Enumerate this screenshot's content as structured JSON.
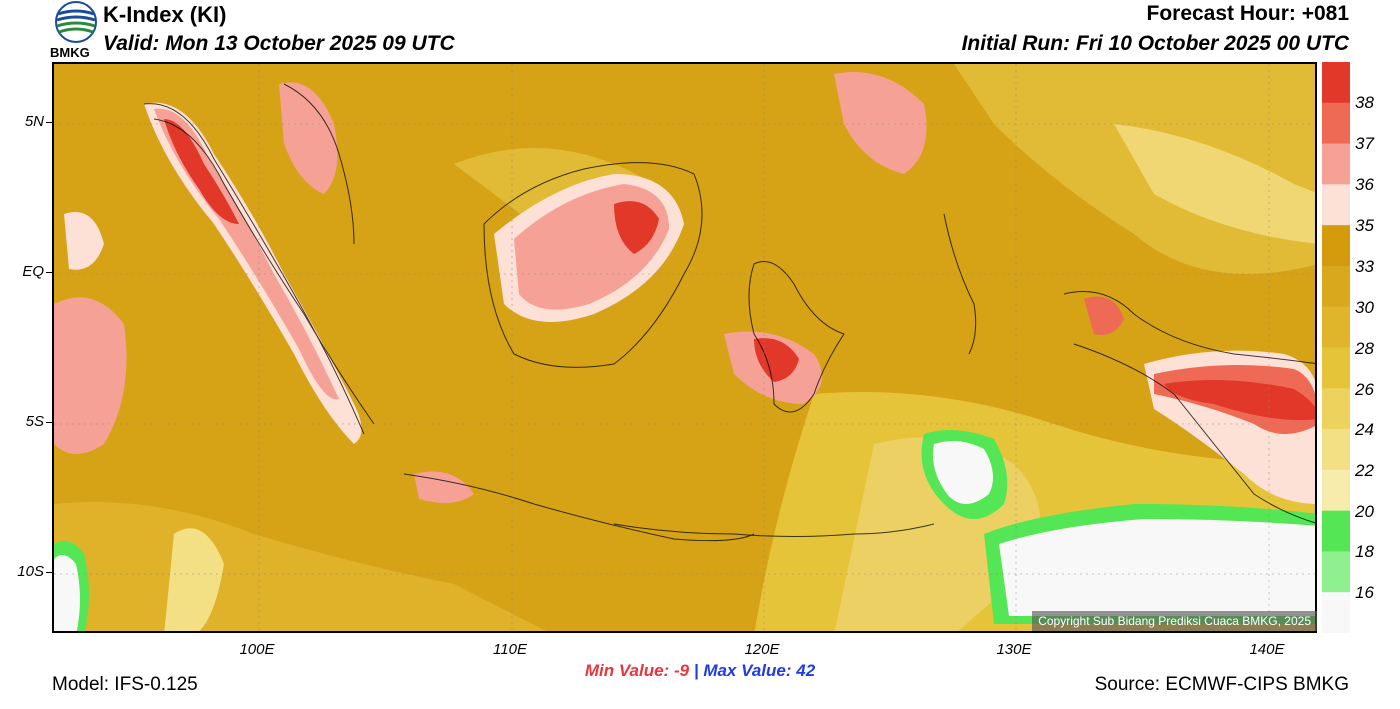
{
  "header": {
    "title": "K-Index (KI)",
    "valid": "Valid: Mon 13 October 2025 09 UTC",
    "forecast_hour": "Forecast Hour: +081",
    "initial_run": "Initial Run: Fri 10 October 2025 00 UTC"
  },
  "logo": {
    "label": "BMKG",
    "icon": "bmkg-logo-icon"
  },
  "map": {
    "lat_labels": [
      "5N",
      "EQ",
      "5S",
      "10S"
    ],
    "lon_labels": [
      "100E",
      "110E",
      "120E",
      "130E",
      "140E"
    ],
    "copyright": "Copyright Sub Bidang Prediksi Cuaca BMKG, 2025"
  },
  "colorbar": {
    "labels": [
      "38",
      "37",
      "36",
      "35",
      "33",
      "30",
      "28",
      "26",
      "24",
      "22",
      "20",
      "18",
      "16"
    ],
    "colors": [
      "#e1382a",
      "#ef6a55",
      "#f6a195",
      "#fde0d6",
      "#d49b0c",
      "#d9a81c",
      "#e0b52a",
      "#e6c43a",
      "#edd35d",
      "#f3e085",
      "#f8ecac",
      "#54e654",
      "#8ff08f",
      "#f8f8f8"
    ]
  },
  "stats": {
    "min_label": "Min Value:",
    "min_value": "-9",
    "separator": "|",
    "max_label": "Max Value:",
    "max_value": "42"
  },
  "footer": {
    "model": "Model: IFS-0.125",
    "source": "Source: ECMWF-CIPS BMKG"
  }
}
